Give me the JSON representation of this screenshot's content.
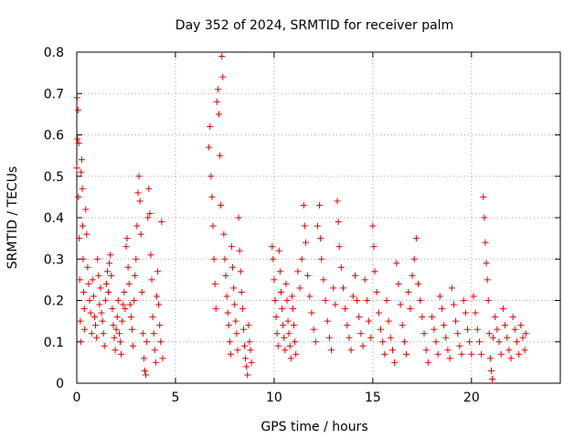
{
  "chart_data": {
    "type": "scatter",
    "title": "Day 352 of 2024, SRMTID for receiver palm",
    "xlabel": "GPS time / hours",
    "ylabel": "SRMTID / TECUs",
    "xlim": [
      0,
      24.5
    ],
    "ylim": [
      0,
      0.8
    ],
    "xticks": [
      0,
      5,
      10,
      15,
      20
    ],
    "yticks": [
      0,
      0.1,
      0.2,
      0.3,
      0.4,
      0.5,
      0.6,
      0.7,
      0.8
    ],
    "xtick_labels": [
      "0",
      "5",
      "10",
      "15",
      "20"
    ],
    "ytick_labels": [
      "0",
      "0.1",
      "0.2",
      "0.3",
      "0.4",
      "0.5",
      "0.6",
      "0.7",
      "0.8"
    ],
    "grid": true,
    "marker": "+",
    "color": "#e00000",
    "series": [
      {
        "name": "SRMTID",
        "points": [
          [
            0.0,
            0.52
          ],
          [
            0.02,
            0.69
          ],
          [
            0.04,
            0.59
          ],
          [
            0.06,
            0.66
          ],
          [
            0.08,
            0.45
          ],
          [
            0.1,
            0.58
          ],
          [
            0.12,
            0.35
          ],
          [
            0.15,
            0.25
          ],
          [
            0.18,
            0.15
          ],
          [
            0.2,
            0.1
          ],
          [
            0.22,
            0.51
          ],
          [
            0.25,
            0.54
          ],
          [
            0.28,
            0.47
          ],
          [
            0.3,
            0.38
          ],
          [
            0.32,
            0.3
          ],
          [
            0.35,
            0.22
          ],
          [
            0.38,
            0.18
          ],
          [
            0.4,
            0.13
          ],
          [
            0.45,
            0.42
          ],
          [
            0.5,
            0.36
          ],
          [
            0.55,
            0.28
          ],
          [
            0.6,
            0.24
          ],
          [
            0.65,
            0.2
          ],
          [
            0.7,
            0.17
          ],
          [
            0.75,
            0.12
          ],
          [
            0.8,
            0.25
          ],
          [
            0.85,
            0.21
          ],
          [
            0.9,
            0.16
          ],
          [
            0.95,
            0.14
          ],
          [
            1.0,
            0.11
          ],
          [
            1.05,
            0.3
          ],
          [
            1.1,
            0.26
          ],
          [
            1.15,
            0.19
          ],
          [
            1.2,
            0.23
          ],
          [
            1.25,
            0.17
          ],
          [
            1.3,
            0.15
          ],
          [
            1.35,
            0.12
          ],
          [
            1.4,
            0.09
          ],
          [
            1.45,
            0.2
          ],
          [
            1.5,
            0.24
          ],
          [
            1.55,
            0.27
          ],
          [
            1.6,
            0.22
          ],
          [
            1.65,
            0.29
          ],
          [
            1.7,
            0.31
          ],
          [
            1.75,
            0.26
          ],
          [
            1.8,
            0.18
          ],
          [
            1.85,
            0.14
          ],
          [
            1.9,
            0.11
          ],
          [
            1.95,
            0.08
          ],
          [
            2.0,
            0.13
          ],
          [
            2.05,
            0.16
          ],
          [
            2.1,
            0.2
          ],
          [
            2.15,
            0.12
          ],
          [
            2.2,
            0.1
          ],
          [
            2.25,
            0.07
          ],
          [
            2.3,
            0.15
          ],
          [
            2.35,
            0.19
          ],
          [
            2.4,
            0.22
          ],
          [
            2.45,
            0.18
          ],
          [
            2.5,
            0.33
          ],
          [
            2.55,
            0.35
          ],
          [
            2.6,
            0.28
          ],
          [
            2.65,
            0.24
          ],
          [
            2.7,
            0.19
          ],
          [
            2.75,
            0.16
          ],
          [
            2.8,
            0.13
          ],
          [
            2.85,
            0.09
          ],
          [
            2.9,
            0.2
          ],
          [
            2.95,
            0.26
          ],
          [
            3.0,
            0.3
          ],
          [
            3.05,
            0.38
          ],
          [
            3.1,
            0.46
          ],
          [
            3.15,
            0.5
          ],
          [
            3.2,
            0.44
          ],
          [
            3.25,
            0.36
          ],
          [
            3.3,
            0.22
          ],
          [
            3.35,
            0.12
          ],
          [
            3.4,
            0.06
          ],
          [
            3.45,
            0.03
          ],
          [
            3.5,
            0.02
          ],
          [
            3.55,
            0.1
          ],
          [
            3.6,
            0.4
          ],
          [
            3.65,
            0.47
          ],
          [
            3.7,
            0.41
          ],
          [
            3.75,
            0.31
          ],
          [
            3.8,
            0.25
          ],
          [
            3.85,
            0.16
          ],
          [
            3.9,
            0.12
          ],
          [
            3.95,
            0.08
          ],
          [
            4.0,
            0.05
          ],
          [
            4.05,
            0.21
          ],
          [
            4.1,
            0.27
          ],
          [
            4.15,
            0.19
          ],
          [
            4.2,
            0.14
          ],
          [
            4.25,
            0.1
          ],
          [
            4.3,
            0.39
          ],
          [
            4.35,
            0.06
          ],
          [
            6.7,
            0.57
          ],
          [
            6.75,
            0.62
          ],
          [
            6.8,
            0.5
          ],
          [
            6.85,
            0.45
          ],
          [
            6.9,
            0.38
          ],
          [
            6.95,
            0.3
          ],
          [
            7.0,
            0.24
          ],
          [
            7.05,
            0.18
          ],
          [
            7.1,
            0.68
          ],
          [
            7.15,
            0.71
          ],
          [
            7.2,
            0.65
          ],
          [
            7.25,
            0.55
          ],
          [
            7.3,
            0.43
          ],
          [
            7.35,
            0.79
          ],
          [
            7.4,
            0.74
          ],
          [
            7.45,
            0.36
          ],
          [
            7.5,
            0.3
          ],
          [
            7.55,
            0.26
          ],
          [
            7.6,
            0.21
          ],
          [
            7.65,
            0.17
          ],
          [
            7.7,
            0.14
          ],
          [
            7.75,
            0.1
          ],
          [
            7.8,
            0.07
          ],
          [
            7.85,
            0.33
          ],
          [
            7.9,
            0.28
          ],
          [
            7.95,
            0.23
          ],
          [
            8.0,
            0.19
          ],
          [
            8.05,
            0.15
          ],
          [
            8.1,
            0.12
          ],
          [
            8.15,
            0.08
          ],
          [
            8.2,
            0.4
          ],
          [
            8.25,
            0.32
          ],
          [
            8.3,
            0.27
          ],
          [
            8.35,
            0.22
          ],
          [
            8.4,
            0.18
          ],
          [
            8.45,
            0.13
          ],
          [
            8.5,
            0.09
          ],
          [
            8.55,
            0.06
          ],
          [
            8.6,
            0.04
          ],
          [
            8.65,
            0.02
          ],
          [
            8.7,
            0.14
          ],
          [
            8.75,
            0.1
          ],
          [
            8.8,
            0.08
          ],
          [
            8.85,
            0.05
          ],
          [
            9.9,
            0.33
          ],
          [
            9.95,
            0.3
          ],
          [
            10.0,
            0.25
          ],
          [
            10.05,
            0.2
          ],
          [
            10.1,
            0.16
          ],
          [
            10.15,
            0.12
          ],
          [
            10.2,
            0.09
          ],
          [
            10.25,
            0.32
          ],
          [
            10.3,
            0.27
          ],
          [
            10.35,
            0.22
          ],
          [
            10.4,
            0.18
          ],
          [
            10.45,
            0.14
          ],
          [
            10.5,
            0.11
          ],
          [
            10.55,
            0.08
          ],
          [
            10.6,
            0.24
          ],
          [
            10.65,
            0.2
          ],
          [
            10.7,
            0.15
          ],
          [
            10.75,
            0.12
          ],
          [
            10.8,
            0.09
          ],
          [
            10.85,
            0.06
          ],
          [
            10.9,
            0.21
          ],
          [
            10.95,
            0.18
          ],
          [
            11.0,
            0.14
          ],
          [
            11.05,
            0.1
          ],
          [
            11.1,
            0.07
          ],
          [
            11.2,
            0.27
          ],
          [
            11.3,
            0.23
          ],
          [
            11.4,
            0.3
          ],
          [
            11.5,
            0.43
          ],
          [
            11.55,
            0.38
          ],
          [
            11.6,
            0.34
          ],
          [
            11.7,
            0.26
          ],
          [
            11.8,
            0.21
          ],
          [
            11.9,
            0.17
          ],
          [
            12.0,
            0.13
          ],
          [
            12.1,
            0.1
          ],
          [
            12.2,
            0.38
          ],
          [
            12.3,
            0.43
          ],
          [
            12.35,
            0.35
          ],
          [
            12.4,
            0.3
          ],
          [
            12.5,
            0.25
          ],
          [
            12.6,
            0.2
          ],
          [
            12.7,
            0.15
          ],
          [
            12.8,
            0.11
          ],
          [
            12.9,
            0.08
          ],
          [
            13.0,
            0.23
          ],
          [
            13.1,
            0.19
          ],
          [
            13.2,
            0.44
          ],
          [
            13.25,
            0.39
          ],
          [
            13.3,
            0.33
          ],
          [
            13.4,
            0.28
          ],
          [
            13.5,
            0.23
          ],
          [
            13.6,
            0.18
          ],
          [
            13.7,
            0.14
          ],
          [
            13.8,
            0.11
          ],
          [
            13.9,
            0.08
          ],
          [
            14.0,
            0.21
          ],
          [
            14.1,
            0.26
          ],
          [
            14.2,
            0.2
          ],
          [
            14.3,
            0.16
          ],
          [
            14.4,
            0.12
          ],
          [
            14.5,
            0.09
          ],
          [
            14.6,
            0.25
          ],
          [
            14.7,
            0.2
          ],
          [
            14.8,
            0.15
          ],
          [
            14.9,
            0.11
          ],
          [
            15.0,
            0.38
          ],
          [
            15.05,
            0.33
          ],
          [
            15.1,
            0.27
          ],
          [
            15.2,
            0.22
          ],
          [
            15.3,
            0.17
          ],
          [
            15.4,
            0.13
          ],
          [
            15.5,
            0.1
          ],
          [
            15.6,
            0.07
          ],
          [
            15.7,
            0.2
          ],
          [
            15.8,
            0.15
          ],
          [
            15.9,
            0.11
          ],
          [
            16.0,
            0.08
          ],
          [
            16.1,
            0.05
          ],
          [
            16.2,
            0.29
          ],
          [
            16.3,
            0.24
          ],
          [
            16.4,
            0.19
          ],
          [
            16.5,
            0.14
          ],
          [
            16.6,
            0.1
          ],
          [
            16.7,
            0.07
          ],
          [
            16.8,
            0.22
          ],
          [
            16.9,
            0.18
          ],
          [
            17.0,
            0.26
          ],
          [
            17.1,
            0.3
          ],
          [
            17.2,
            0.35
          ],
          [
            17.3,
            0.24
          ],
          [
            17.4,
            0.2
          ],
          [
            17.5,
            0.16
          ],
          [
            17.6,
            0.12
          ],
          [
            17.7,
            0.08
          ],
          [
            17.8,
            0.05
          ],
          [
            18.0,
            0.16
          ],
          [
            18.1,
            0.13
          ],
          [
            18.2,
            0.1
          ],
          [
            18.3,
            0.07
          ],
          [
            18.4,
            0.21
          ],
          [
            18.5,
            0.18
          ],
          [
            18.6,
            0.14
          ],
          [
            18.7,
            0.11
          ],
          [
            18.8,
            0.08
          ],
          [
            18.9,
            0.06
          ],
          [
            19.0,
            0.23
          ],
          [
            19.1,
            0.19
          ],
          [
            19.2,
            0.15
          ],
          [
            19.3,
            0.12
          ],
          [
            19.4,
            0.09
          ],
          [
            19.5,
            0.07
          ],
          [
            19.6,
            0.2
          ],
          [
            19.7,
            0.17
          ],
          [
            19.8,
            0.13
          ],
          [
            19.9,
            0.1
          ],
          [
            20.0,
            0.07
          ],
          [
            20.1,
            0.21
          ],
          [
            20.2,
            0.17
          ],
          [
            20.3,
            0.13
          ],
          [
            20.4,
            0.1
          ],
          [
            20.5,
            0.07
          ],
          [
            20.6,
            0.45
          ],
          [
            20.65,
            0.4
          ],
          [
            20.7,
            0.34
          ],
          [
            20.75,
            0.29
          ],
          [
            20.8,
            0.25
          ],
          [
            20.85,
            0.2
          ],
          [
            20.9,
            0.12
          ],
          [
            20.95,
            0.06
          ],
          [
            21.0,
            0.03
          ],
          [
            21.05,
            0.01
          ],
          [
            21.1,
            0.11
          ],
          [
            21.2,
            0.16
          ],
          [
            21.3,
            0.13
          ],
          [
            21.4,
            0.1
          ],
          [
            21.5,
            0.07
          ],
          [
            21.6,
            0.18
          ],
          [
            21.7,
            0.14
          ],
          [
            21.8,
            0.11
          ],
          [
            21.9,
            0.08
          ],
          [
            22.0,
            0.06
          ],
          [
            22.1,
            0.16
          ],
          [
            22.2,
            0.13
          ],
          [
            22.3,
            0.1
          ],
          [
            22.4,
            0.07
          ],
          [
            22.5,
            0.14
          ],
          [
            22.6,
            0.11
          ],
          [
            22.7,
            0.08
          ],
          [
            22.75,
            0.12
          ]
        ]
      }
    ]
  }
}
